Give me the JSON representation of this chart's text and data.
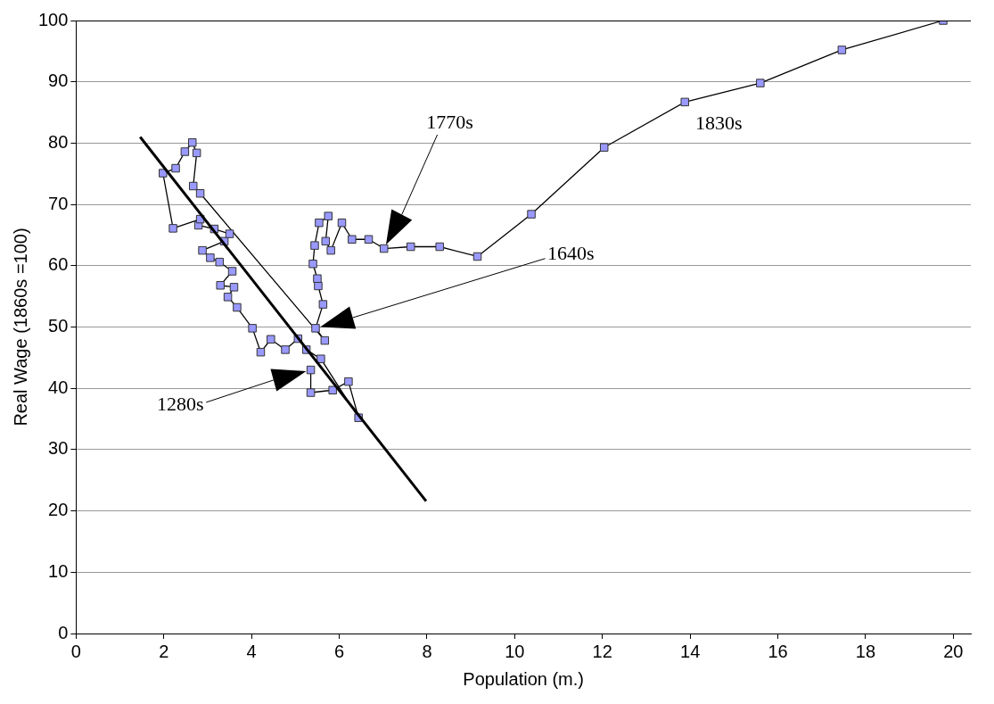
{
  "chart_data": {
    "type": "line",
    "xlabel": "Population (m.)",
    "ylabel": "Real Wage (1860s =100)",
    "xlim": [
      0,
      20.4
    ],
    "xticks": [
      0,
      2,
      4,
      6,
      8,
      10,
      12,
      14,
      16,
      18,
      20
    ],
    "ylim": [
      0,
      100
    ],
    "yticks": [
      0,
      10,
      20,
      30,
      40,
      50,
      60,
      70,
      80,
      90,
      100
    ],
    "grid": "y",
    "legend": false,
    "series": [
      {
        "marker": "square",
        "color": "#9999ff",
        "x": [
          5.35,
          5.35,
          5.85,
          6.21,
          6.44,
          5.58,
          5.25,
          5.06,
          4.77,
          4.44,
          4.21,
          4.02,
          3.67,
          3.46,
          3.6,
          3.29,
          3.56,
          3.27,
          3.06,
          2.88,
          3.38,
          3.5,
          3.15,
          2.79,
          2.83,
          2.21,
          1.98,
          2.27,
          2.48,
          2.65,
          2.75,
          2.67,
          2.83,
          5.67,
          5.46,
          5.63,
          5.52,
          5.5,
          5.4,
          5.44,
          5.54,
          5.75,
          5.69,
          5.81,
          6.06,
          6.29,
          6.67,
          7.02,
          7.63,
          8.29,
          9.15,
          10.38,
          12.04,
          13.88,
          15.6,
          17.46,
          19.77
        ],
        "values": [
          43.0,
          39.3,
          39.7,
          41.1,
          35.2,
          44.8,
          46.3,
          48.1,
          46.3,
          48.0,
          45.9,
          49.8,
          53.2,
          54.9,
          56.5,
          56.8,
          59.1,
          60.6,
          61.3,
          62.5,
          64.0,
          65.2,
          66.0,
          66.6,
          67.6,
          66.1,
          75.1,
          75.9,
          78.6,
          80.1,
          78.4,
          73.0,
          71.8,
          47.8,
          49.8,
          53.7,
          56.7,
          57.9,
          60.3,
          63.3,
          67.0,
          68.1,
          64.0,
          62.5,
          67.0,
          64.3,
          64.3,
          62.8,
          63.1,
          63.1,
          61.5,
          68.4,
          79.3,
          86.7,
          89.8,
          95.2,
          100
        ]
      },
      {
        "marker": "none",
        "color": "#000000",
        "x": [
          1.46,
          7.98
        ],
        "values": [
          81.0,
          21.6
        ]
      }
    ],
    "annotations": [
      "1770s",
      "1640s",
      "1280s",
      {
        "text": "1830s",
        "x": 13.88,
        "y": 86.7
      }
    ]
  }
}
